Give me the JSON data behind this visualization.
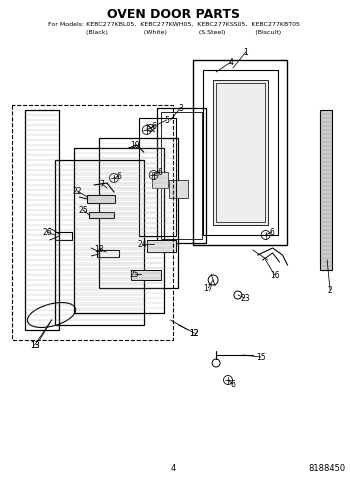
{
  "title": "OVEN DOOR PARTS",
  "subtitle_line1": "For Models: KEBC277KBL05,  KEBC277KWH05,  KEBC277KSS05,  KEBC277KBT05",
  "subtitle_line2": "          (Black)                  (White)                (S.Steel)               (Biscuit)",
  "page_number": "4",
  "part_number": "8188450",
  "bg_color": "#ffffff",
  "lc": "#000000",
  "tc": "#000000"
}
